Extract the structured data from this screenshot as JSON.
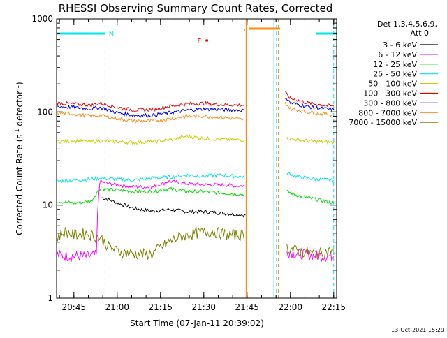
{
  "chart_data": {
    "type": "line",
    "title": "RHESSI Observing Summary Count Rates, Corrected",
    "xlabel": "Start Time (07-Jan-11 20:39:02)",
    "ylabel_main": "Corrected Count Rate (s",
    "ylabel_sup": "-1",
    "ylabel_mid": " detector",
    "ylabel_sup2": "-1",
    "ylabel_end": ")",
    "yscale": "log",
    "ylim": [
      1,
      1000
    ],
    "y_ticks": [
      "1",
      "10",
      "100",
      "1000"
    ],
    "xlim_minutes": [
      20.65,
      22.267
    ],
    "x_ticks": [
      "20:45",
      "21:00",
      "21:15",
      "21:30",
      "21:45",
      "22:00",
      "22:15"
    ],
    "x_tick_values": [
      20.75,
      21.0,
      21.25,
      21.5,
      21.75,
      22.0,
      22.25
    ],
    "detectors": "Det 1,3,4,5,6,9,",
    "attenuator": "Att 0",
    "timestamp": "13-Oct-2021 15:29",
    "flags": [
      {
        "label": "N",
        "color": "#00e5e5",
        "segments": [
          [
            20.65,
            20.93
          ],
          [
            22.15,
            22.267
          ]
        ]
      },
      {
        "label": "S",
        "color": "#ff8c1a",
        "segments": [
          [
            21.76,
            21.94
          ]
        ]
      },
      {
        "label": "F",
        "color": "#e60000",
        "segments": [
          [
            21.51,
            21.525
          ]
        ]
      }
    ],
    "cyan_vlines": [
      20.93,
      21.92,
      22.25
    ],
    "cyan_solid_vline": 21.905,
    "orange_vlines_solid": [
      21.745
    ],
    "orange_vlines_dashed": [
      21.93
    ],
    "series": [
      {
        "name": "3 - 6 keV",
        "color": "#000000",
        "x": [
          20.91,
          20.95,
          21.0,
          21.1,
          21.2,
          21.3,
          21.4,
          21.5,
          21.6,
          21.74
        ],
        "y": [
          12,
          11.5,
          10.5,
          9.2,
          8.6,
          9.0,
          8.5,
          8.5,
          8.2,
          7.8
        ]
      },
      {
        "name": "6 - 12 keV",
        "color": "#ff00ff",
        "x": [
          20.65,
          20.82,
          20.88,
          20.9,
          20.95,
          21.05,
          21.2,
          21.3,
          21.4,
          21.5,
          21.6,
          21.74,
          21.98,
          22.05,
          22.15,
          22.25
        ],
        "y": [
          2.9,
          2.8,
          2.9,
          18,
          17,
          16,
          15.5,
          18,
          17,
          16.5,
          16.5,
          16,
          3.2,
          3.0,
          2.9,
          2.8
        ]
      },
      {
        "name": "12 - 25 keV",
        "color": "#00dd00",
        "x": [
          20.65,
          20.75,
          20.85,
          20.9,
          21.0,
          21.1,
          21.2,
          21.3,
          21.4,
          21.5,
          21.6,
          21.74,
          21.98,
          22.05,
          22.15,
          22.25
        ],
        "y": [
          11,
          10.5,
          11,
          15,
          14.5,
          14,
          14,
          15,
          14,
          14,
          13.5,
          13,
          14,
          12.5,
          11.5,
          10.5
        ]
      },
      {
        "name": "25 - 50 keV",
        "color": "#00e5e5",
        "x": [
          20.65,
          20.75,
          20.85,
          20.9,
          21.0,
          21.1,
          21.2,
          21.3,
          21.4,
          21.5,
          21.6,
          21.74,
          21.98,
          22.05,
          22.15,
          22.25
        ],
        "y": [
          18,
          18.5,
          19,
          19.5,
          19,
          18.5,
          19.5,
          20,
          21,
          20.5,
          21,
          20,
          22,
          20,
          19,
          18.5
        ]
      },
      {
        "name": "50 - 100 keV",
        "color": "#cccc00",
        "x": [
          20.65,
          20.75,
          20.85,
          20.9,
          21.0,
          21.1,
          21.2,
          21.3,
          21.4,
          21.5,
          21.6,
          21.74,
          21.98,
          22.05,
          22.15,
          22.25
        ],
        "y": [
          48,
          49,
          48,
          49,
          48,
          47,
          48,
          50,
          55,
          52,
          51,
          50,
          52,
          50,
          48,
          47
        ]
      },
      {
        "name": "100 - 300 keV",
        "color": "#e60000",
        "x": [
          20.65,
          20.75,
          20.85,
          20.9,
          21.0,
          21.1,
          21.2,
          21.3,
          21.4,
          21.5,
          21.6,
          21.74,
          21.97,
          22.0,
          22.1,
          22.2,
          22.25
        ],
        "y": [
          125,
          122,
          118,
          125,
          112,
          105,
          106,
          115,
          122,
          124,
          120,
          118,
          160,
          140,
          125,
          118,
          115
        ]
      },
      {
        "name": "300 - 800 keV",
        "color": "#0000e6",
        "x": [
          20.65,
          20.75,
          20.85,
          20.9,
          21.0,
          21.1,
          21.2,
          21.3,
          21.4,
          21.5,
          21.6,
          21.74,
          21.97,
          22.0,
          22.1,
          22.2,
          22.25
        ],
        "y": [
          115,
          112,
          108,
          112,
          98,
          92,
          92,
          98,
          104,
          108,
          106,
          104,
          145,
          125,
          114,
          108,
          106
        ]
      },
      {
        "name": "800 - 7000 keV",
        "color": "#ff8c1a",
        "x": [
          20.65,
          20.75,
          20.85,
          20.9,
          21.0,
          21.1,
          21.2,
          21.3,
          21.4,
          21.5,
          21.6,
          21.74,
          21.97,
          22.0,
          22.1,
          22.2,
          22.25
        ],
        "y": [
          98,
          95,
          90,
          92,
          85,
          80,
          80,
          84,
          90,
          90,
          88,
          82,
          125,
          108,
          100,
          95,
          93
        ]
      },
      {
        "name": "7000 - 15000 keV",
        "color": "#808000",
        "x": [
          20.65,
          20.7,
          20.75,
          20.82,
          20.9,
          20.95,
          21.0,
          21.1,
          21.2,
          21.28,
          21.35,
          21.45,
          21.55,
          21.65,
          21.74,
          21.98,
          22.05,
          22.15,
          22.25
        ],
        "y": [
          4.5,
          5.2,
          4.8,
          5.0,
          4.5,
          3.6,
          3.2,
          3.0,
          3.0,
          3.8,
          4.5,
          5.0,
          5.2,
          4.8,
          4.8,
          3.5,
          3.2,
          3.0,
          3.3
        ]
      }
    ]
  }
}
